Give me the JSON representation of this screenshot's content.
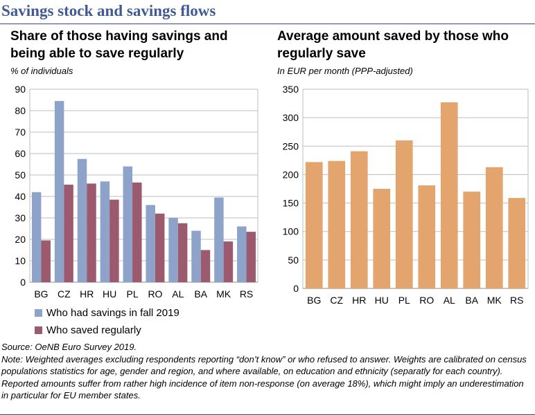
{
  "main_title": "Savings stock and savings flows",
  "colors": {
    "title": "#3f5a95",
    "series_savings": "#8ea3c9",
    "series_regular": "#9b5a6d",
    "series_amount": "#e3a46e",
    "grid": "#bdbdbd",
    "rule": "#2f4a87"
  },
  "chart_data": [
    {
      "type": "bar",
      "title": "Share of those having savings and being able to save regularly",
      "ylabel": "% of individuals",
      "xlabel": "",
      "categories": [
        "BG",
        "CZ",
        "HR",
        "HU",
        "PL",
        "RO",
        "AL",
        "BA",
        "MK",
        "RS"
      ],
      "series": [
        {
          "name": "Who had savings in fall 2019",
          "values": [
            42,
            84.5,
            57.5,
            47,
            54,
            36,
            30,
            24,
            39.5,
            26
          ]
        },
        {
          "name": "Who saved regularly",
          "values": [
            19.5,
            45.5,
            46,
            38.5,
            46.5,
            32,
            27.5,
            15,
            19,
            23.5
          ]
        }
      ],
      "ylim": [
        0,
        90
      ],
      "yticks": [
        0,
        10,
        20,
        30,
        40,
        50,
        60,
        70,
        80,
        90
      ],
      "grid": true,
      "legend": "bottom"
    },
    {
      "type": "bar",
      "title": "Average amount saved by those who regularly save",
      "ylabel": "In EUR per month (PPP-adjusted)",
      "xlabel": "",
      "categories": [
        "BG",
        "CZ",
        "HR",
        "HU",
        "PL",
        "RO",
        "AL",
        "BA",
        "MK",
        "RS"
      ],
      "values": [
        222,
        224,
        241,
        175,
        260,
        181,
        327,
        170,
        213,
        159
      ],
      "ylim": [
        0,
        350
      ],
      "yticks": [
        0,
        50,
        100,
        150,
        200,
        250,
        300,
        350
      ],
      "grid": true,
      "legend": "none"
    }
  ],
  "source": "Source: OeNB Euro Survey 2019.",
  "note": "Note: Weighted averages excluding respondents reporting “don’t know” or who refused to answer. Weights are calibrated on census populations statistics for age, gender and region, and where available, on education and ethnicity (separatly for each country). Reported amounts suffer from rather high incidence of item non-response (on average 18%), which might imply an underestimation in particular for EU member states."
}
